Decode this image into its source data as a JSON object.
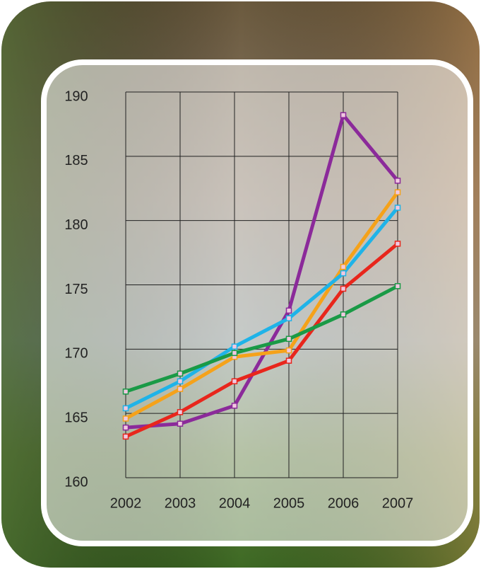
{
  "chart_data": {
    "type": "line",
    "categories": [
      "2002",
      "2003",
      "2004",
      "2005",
      "2006",
      "2007"
    ],
    "series": [
      {
        "color": "#8b2a9a",
        "values": [
          163.9,
          164.2,
          165.6,
          173.0,
          188.2,
          183.1
        ]
      },
      {
        "color": "#e8261c",
        "values": [
          163.2,
          165.1,
          167.5,
          169.1,
          174.7,
          178.2
        ]
      },
      {
        "color": "#f5a21a",
        "values": [
          164.6,
          166.9,
          169.4,
          169.9,
          176.4,
          182.2
        ]
      },
      {
        "color": "#1fb3e8",
        "values": [
          165.4,
          167.5,
          170.2,
          172.4,
          175.9,
          181.0
        ]
      },
      {
        "color": "#1a9a46",
        "values": [
          166.7,
          168.1,
          169.7,
          170.8,
          172.7,
          174.9
        ]
      }
    ],
    "ylim": [
      160,
      190
    ],
    "yticks": [
      160,
      165,
      170,
      175,
      180,
      185,
      190
    ],
    "grid": true
  }
}
